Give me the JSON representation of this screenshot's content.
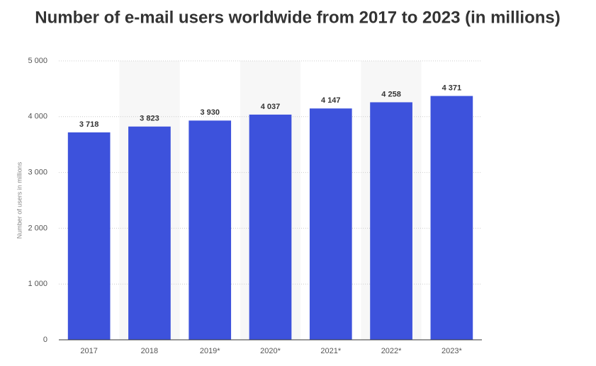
{
  "chart_data": {
    "type": "bar",
    "title": "Number of e-mail users worldwide from 2017 to 2023 (in millions)",
    "y_label": "Number of users in millions",
    "categories": [
      "2017",
      "2018",
      "2019*",
      "2020*",
      "2021*",
      "2022*",
      "2023*"
    ],
    "values": [
      3718,
      3823,
      3930,
      4037,
      4147,
      4258,
      4371
    ],
    "value_labels": [
      "3 718",
      "3 823",
      "3 930",
      "4 037",
      "4 147",
      "4 258",
      "4 371"
    ],
    "color": "#3d52dc",
    "ylim": [
      0,
      5000
    ],
    "yticks": [
      0,
      {
        "value": 1000,
        "label": "1 000"
      },
      {
        "value": 2000,
        "label": "2 000"
      },
      {
        "value": 3000,
        "label": "3 000"
      },
      {
        "value": 4000,
        "label": "4 000"
      },
      {
        "value": 5000,
        "label": "5 000"
      }
    ],
    "grid": true
  }
}
